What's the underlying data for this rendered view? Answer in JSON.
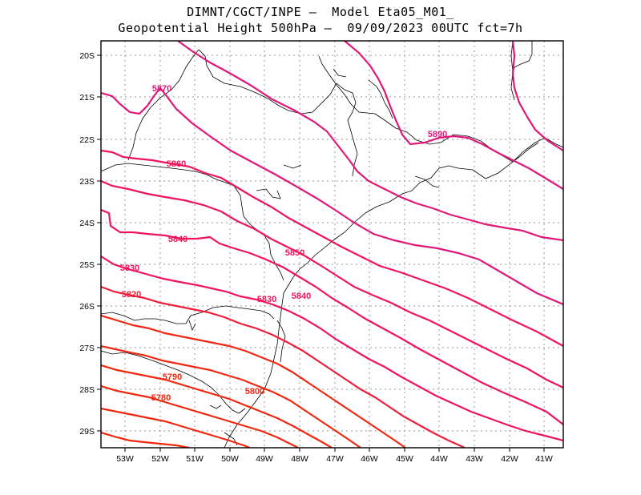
{
  "header": {
    "line1": "DIMNT/CGCT/INPE –  Model Eta05_M01_",
    "line2": "Geopotential Height 500hPa –  09/09/2023 00UTC fct=7h"
  },
  "map": {
    "lat_labels": [
      "20S",
      "21S",
      "22S",
      "23S",
      "24S",
      "25S",
      "26S",
      "27S",
      "28S",
      "29S"
    ],
    "lon_labels": [
      "53W",
      "52W",
      "51W",
      "50W",
      "49W",
      "48W",
      "47W",
      "46W",
      "45W",
      "44W",
      "43W",
      "42W",
      "41W"
    ],
    "contour_labels": [
      "5870",
      "5860",
      "5840",
      "5830",
      "5820",
      "5850",
      "5830",
      "5840",
      "5890",
      "5790",
      "5780",
      "5800"
    ],
    "colors": {
      "high": "#e0187a",
      "mid": "#f0145a",
      "low": "#f0280f",
      "coast": "#000000",
      "grid": "#9a9a9a"
    }
  }
}
